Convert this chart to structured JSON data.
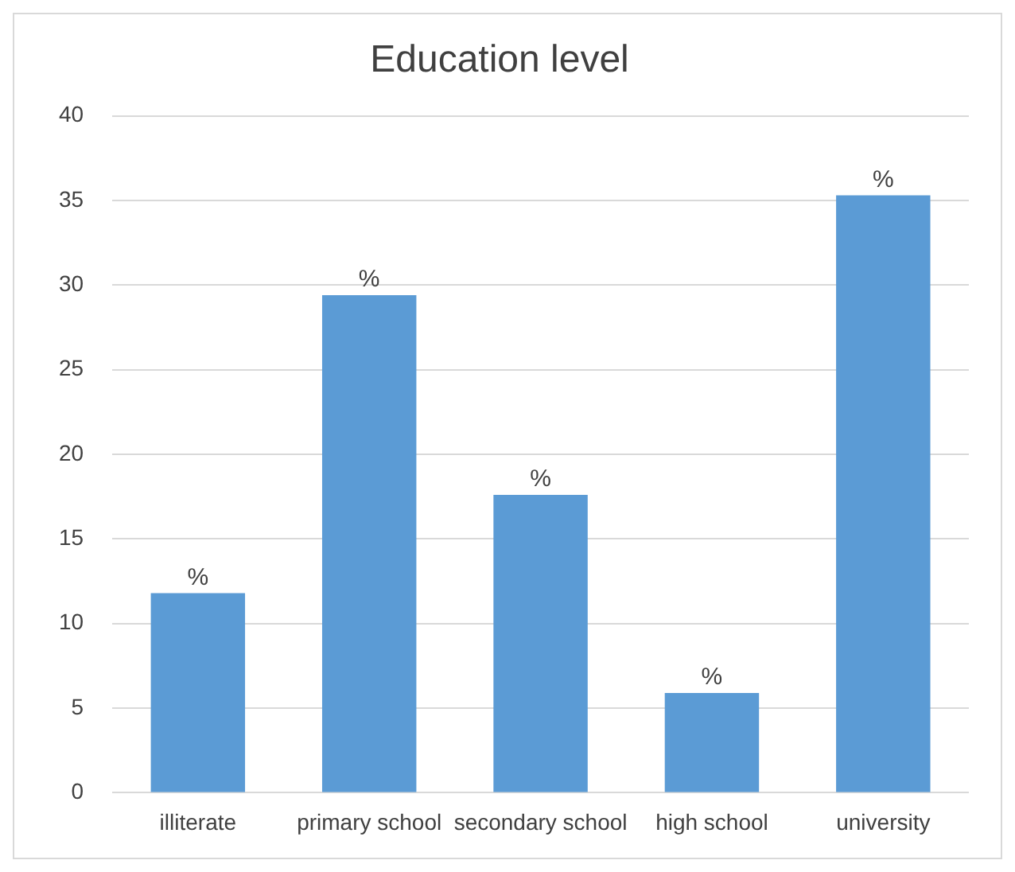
{
  "chart_data": {
    "type": "bar",
    "title": "Education level",
    "categories": [
      "illiterate",
      "primary school",
      "secondary school",
      "high school",
      "university"
    ],
    "values": [
      11.8,
      29.4,
      17.6,
      5.9,
      35.3
    ],
    "color": "#5b9bd5",
    "value_labels": [
      "%",
      "%",
      "%",
      "%",
      "%"
    ],
    "ylim": [
      0,
      40
    ],
    "yticks": [
      0,
      5,
      10,
      15,
      20,
      25,
      30,
      35,
      40
    ],
    "grid": "y",
    "legend": false
  }
}
